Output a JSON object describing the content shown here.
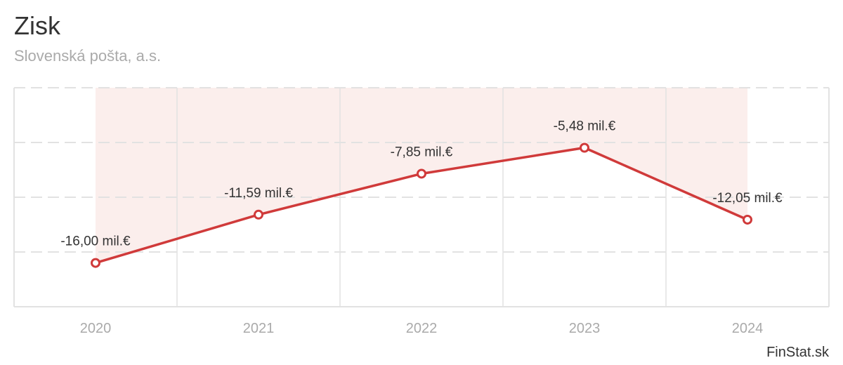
{
  "title": "Zisk",
  "subtitle": "Slovenská pošta, a.s.",
  "credit": "FinStat.sk",
  "colors": {
    "line": "#d03a3a",
    "area": "#fbeeec",
    "grid": "#e2e2e2",
    "axis_text": "#aaaaaa"
  },
  "chart_data": {
    "type": "line",
    "title": "Zisk",
    "subtitle": "Slovenská pošta, a.s.",
    "categories": [
      "2020",
      "2021",
      "2022",
      "2023",
      "2024"
    ],
    "values": [
      -16.0,
      -11.59,
      -7.85,
      -5.48,
      -12.05
    ],
    "data_labels": [
      "-16,00 mil.€",
      "-11,59 mil.€",
      "-7,85 mil.€",
      "-5,48 mil.€",
      "-12,05 mil.€"
    ],
    "unit": "mil.€",
    "ylim": [
      -20,
      0
    ],
    "yticks": [
      0,
      -5,
      -10,
      -15,
      -20
    ],
    "y_tick_labels_visible": false,
    "grid": true,
    "area_fill_to_zero": true,
    "legend": "none"
  }
}
